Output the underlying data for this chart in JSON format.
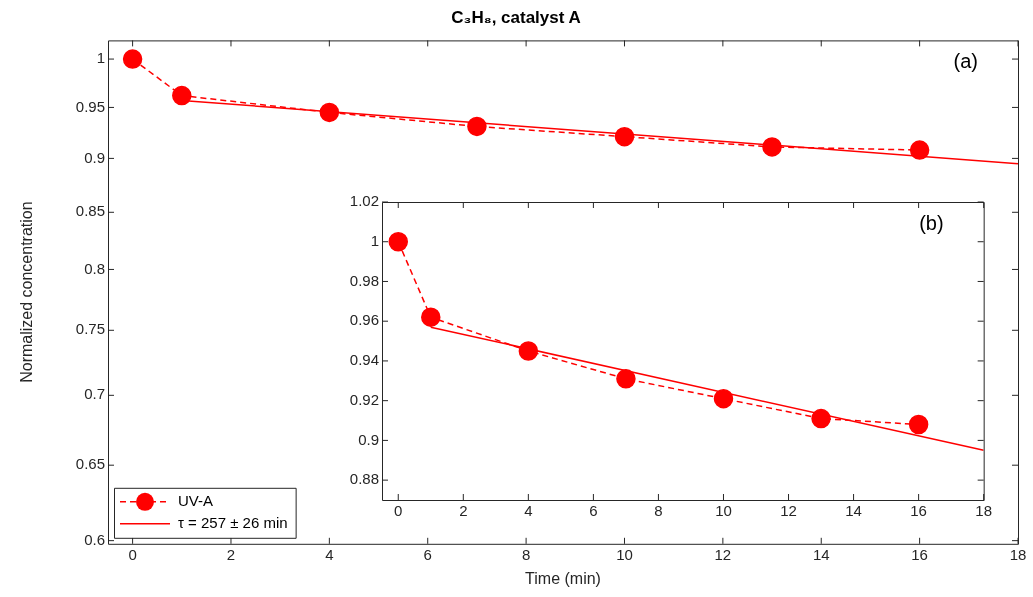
{
  "chart_data": [
    {
      "type": "line",
      "title": "C₃H₈, catalyst A",
      "xlabel": "Time (min)",
      "ylabel": "Normalized concentration",
      "log": "y",
      "grid": false,
      "legend": "bottom left",
      "annotations": [
        "(a)"
      ],
      "xlim": [
        -0.5,
        18
      ],
      "xticks": [
        0,
        2,
        4,
        6,
        8,
        10,
        12,
        14,
        16,
        18
      ],
      "ylim": [
        0.598,
        1.02
      ],
      "yticks": [
        0.6,
        0.65,
        0.7,
        0.75,
        0.8,
        0.85,
        0.9,
        0.95,
        1
      ],
      "series": [
        {
          "name": "UV-A",
          "color": "#ff0000",
          "marker": "circle",
          "line_style": "dashed",
          "x": [
            0,
            1,
            4,
            7,
            10,
            13,
            16
          ],
          "values": [
            1,
            0.962,
            0.945,
            0.931,
            0.921,
            0.911,
            0.908
          ]
        },
        {
          "name": "τ = 257 ± 26 min",
          "color": "#ff0000",
          "marker": "none",
          "line_style": "solid",
          "x": [
            1,
            18
          ],
          "values": [
            0.957,
            0.895
          ]
        }
      ]
    },
    {
      "type": "line",
      "grid": false,
      "annotations": [
        "(b)"
      ],
      "xlim": [
        -0.5,
        18
      ],
      "xticks": [
        0,
        2,
        4,
        6,
        8,
        10,
        12,
        14,
        16,
        18
      ],
      "ylim": [
        0.87,
        1.02
      ],
      "yticks": [
        0.88,
        0.9,
        0.92,
        0.94,
        0.96,
        0.98,
        1,
        1.02
      ],
      "series": [
        {
          "color": "#ff0000",
          "marker": "circle",
          "line_style": "dashed",
          "x": [
            0,
            1,
            4,
            7,
            10,
            13,
            16
          ],
          "values": [
            1,
            0.962,
            0.945,
            0.931,
            0.921,
            0.911,
            0.908
          ]
        },
        {
          "color": "#ff0000",
          "marker": "none",
          "line_style": "solid",
          "x": [
            1,
            18
          ],
          "values": [
            0.957,
            0.895
          ]
        }
      ]
    }
  ]
}
